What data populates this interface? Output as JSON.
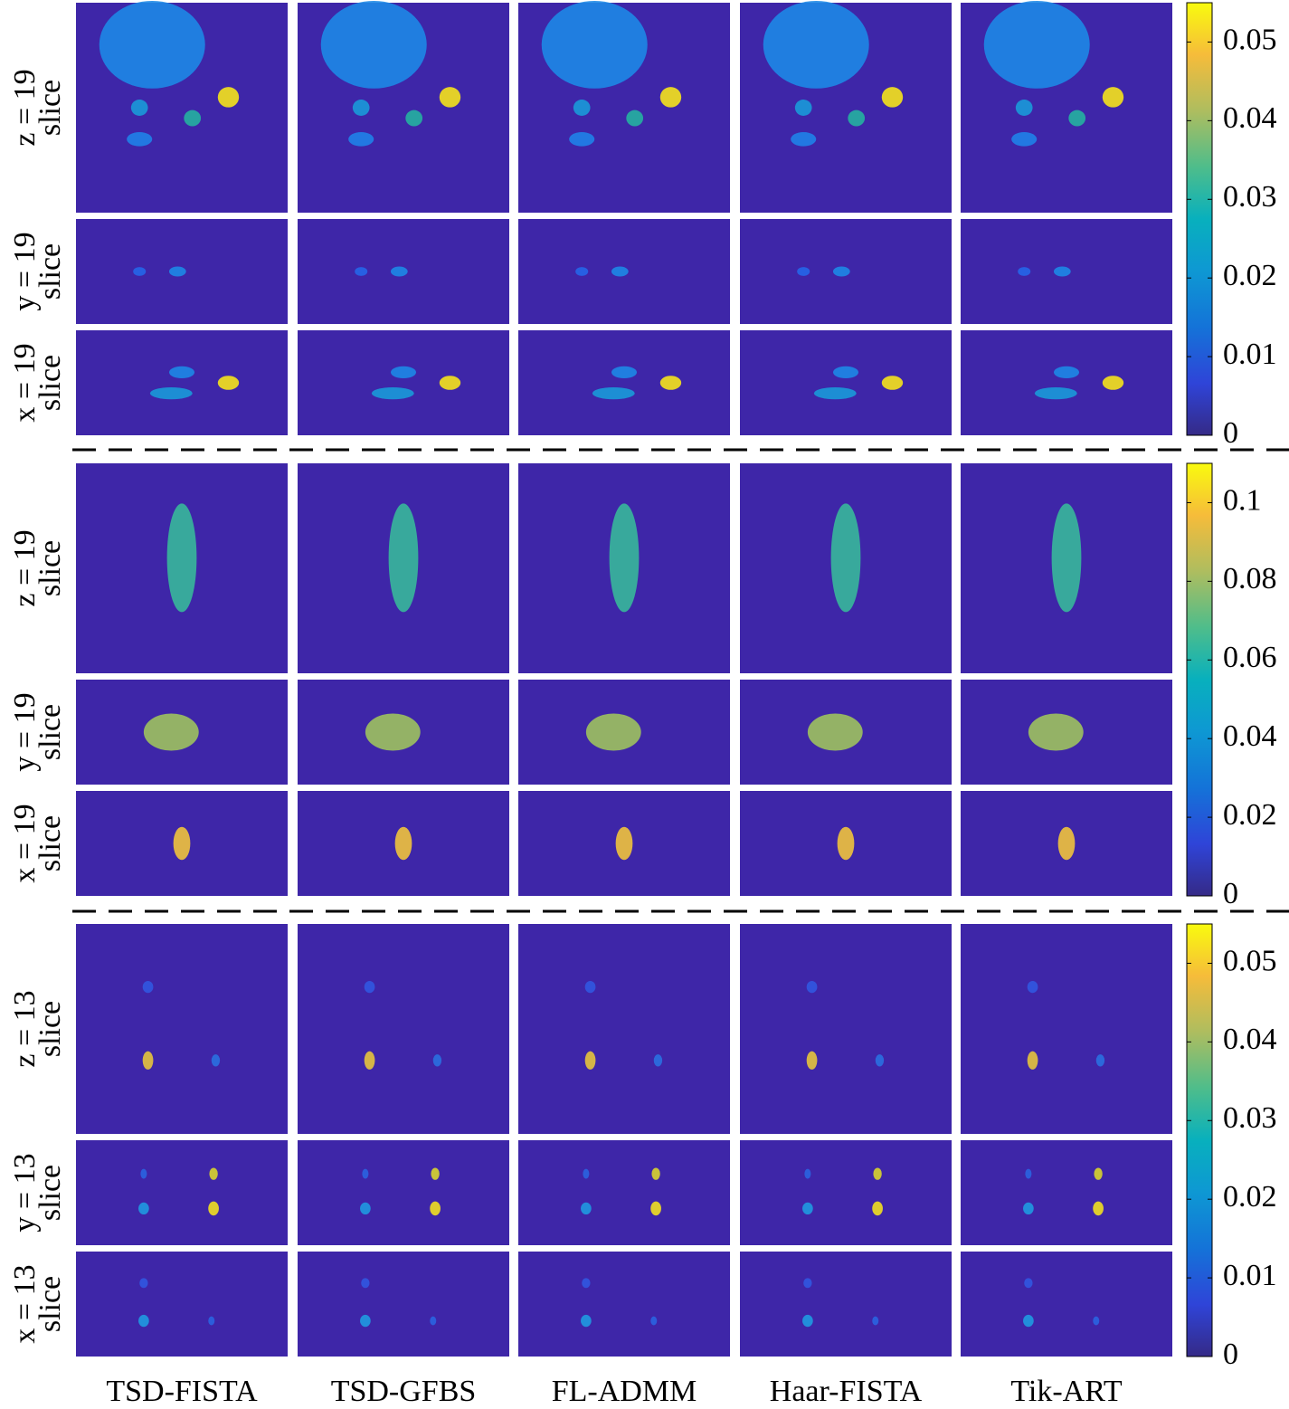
{
  "columns": [
    "TSD-FISTA",
    "TSD-GFBS",
    "FL-ADMM",
    "Haar-FISTA",
    "Tik-ART"
  ],
  "groups": [
    {
      "rows": [
        {
          "label": "z = 19",
          "sub": "slice"
        },
        {
          "label": "y = 19",
          "sub": "slice"
        },
        {
          "label": "x = 19",
          "sub": "slice"
        }
      ],
      "colorbar": {
        "lim": [
          0,
          0.055
        ],
        "ticks": [
          0,
          0.01,
          0.02,
          0.03,
          0.04,
          0.05
        ]
      }
    },
    {
      "rows": [
        {
          "label": "z = 19",
          "sub": "slice"
        },
        {
          "label": "y = 19",
          "sub": "slice"
        },
        {
          "label": "x = 19",
          "sub": "slice"
        }
      ],
      "colorbar": {
        "lim": [
          0,
          0.11
        ],
        "ticks": [
          0,
          0.02,
          0.04,
          0.06,
          0.08,
          0.1
        ]
      }
    },
    {
      "rows": [
        {
          "label": "z = 13",
          "sub": "slice"
        },
        {
          "label": "y = 13",
          "sub": "slice"
        },
        {
          "label": "x = 13",
          "sub": "slice"
        }
      ],
      "colorbar": {
        "lim": [
          0,
          0.055
        ],
        "ticks": [
          0,
          0.01,
          0.02,
          0.03,
          0.04,
          0.05
        ]
      }
    }
  ]
}
